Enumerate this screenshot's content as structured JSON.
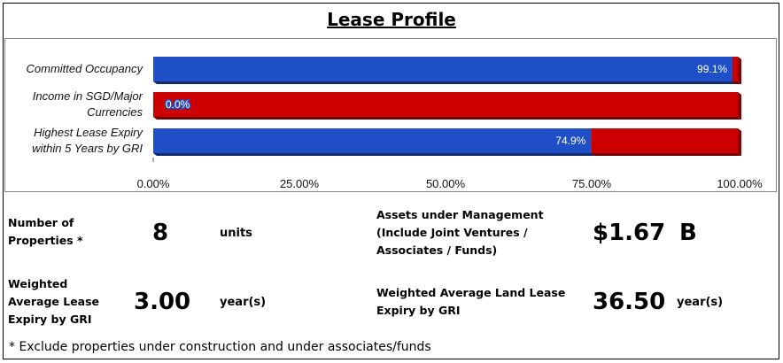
{
  "title": "Lease Profile",
  "chart_data": {
    "type": "bar",
    "orientation": "horizontal",
    "stacked": true,
    "categories": [
      "Committed Occupancy",
      "Income in SGD/Major Currencies",
      "Highest Lease Expiry within 5 Years by GRI"
    ],
    "category_lines": [
      [
        "Committed Occupancy"
      ],
      [
        "Income in SGD/Major",
        "Currencies"
      ],
      [
        "Highest Lease Expiry",
        "within 5 Years by GRI"
      ]
    ],
    "series": [
      {
        "values": [
          99.1,
          0.0,
          74.9
        ],
        "color": "#1f4fc7"
      },
      {
        "values": [
          0.9,
          100.0,
          25.1
        ],
        "color": "#cc0000"
      }
    ],
    "data_labels": [
      "99.1%",
      "0.0%",
      "74.9%"
    ],
    "xlim": [
      0,
      100
    ],
    "xticks": [
      0,
      25,
      50,
      75,
      100
    ],
    "xtick_labels": [
      "0.00%",
      "25.00%",
      "50.00%",
      "75.00%",
      "100.00%"
    ],
    "grid": false,
    "legend": "none"
  },
  "stats": {
    "properties": {
      "label_lines": [
        "Number of",
        "Properties *"
      ],
      "value": "8",
      "unit": "units"
    },
    "wale": {
      "label_lines": [
        "Weighted",
        "Average Lease",
        "Expiry by GRI"
      ],
      "value": "3.00",
      "unit": "year(s)"
    },
    "aum": {
      "label_lines": [
        "Assets under Management",
        "(Include Joint Ventures /",
        "Associates / Funds)"
      ],
      "value": "$1.67",
      "unit": "B"
    },
    "walle": {
      "label_lines": [
        "Weighted Average Land Lease",
        "Expiry by GRI"
      ],
      "value": "36.50",
      "unit": "year(s)"
    }
  },
  "footnote": "* Exclude properties under construction and under associates/funds"
}
